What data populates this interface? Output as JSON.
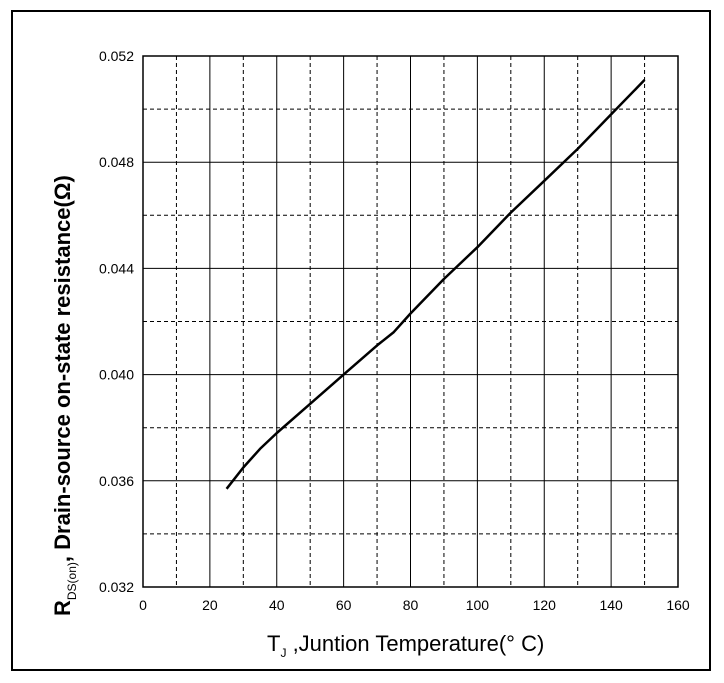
{
  "chart_data": {
    "type": "line",
    "xlabel": {
      "symbol": "T",
      "subscript": "J",
      "text": " ,Juntion Temperature(° C)"
    },
    "ylabel": {
      "symbol": "R",
      "subscript": "DS(on)",
      "text": ", Drain-source on-state resistance(Ω)"
    },
    "xlim": [
      0,
      160
    ],
    "ylim": [
      0.032,
      0.052
    ],
    "x_ticks": [
      "0",
      "20",
      "40",
      "60",
      "80",
      "100",
      "120",
      "140",
      "160"
    ],
    "y_ticks": [
      "0.032",
      "0.036",
      "0.040",
      "0.044",
      "0.048",
      "0.052"
    ],
    "grid": true,
    "legend": "none",
    "series": [
      {
        "x": [
          25,
          30,
          35,
          40,
          50,
          60,
          70,
          75,
          80,
          90,
          100,
          110,
          120,
          130,
          140,
          150
        ],
        "y": [
          0.0357,
          0.0365,
          0.0372,
          0.0378,
          0.0389,
          0.04,
          0.0411,
          0.0416,
          0.0423,
          0.0436,
          0.0448,
          0.0461,
          0.0473,
          0.0485,
          0.0498,
          0.0511
        ]
      }
    ]
  }
}
